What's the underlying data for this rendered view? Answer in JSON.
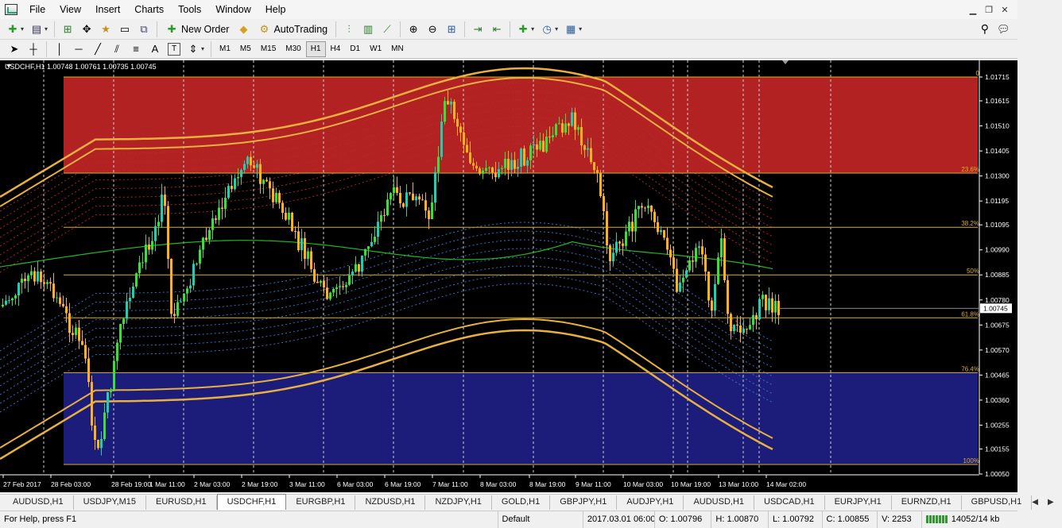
{
  "menu": [
    "File",
    "View",
    "Insert",
    "Charts",
    "Tools",
    "Window",
    "Help"
  ],
  "toolbar": {
    "new_order": "New Order",
    "autotrading": "AutoTrading"
  },
  "drawing_tools": {
    "text_tool": "A",
    "label_tool": "T"
  },
  "timeframes": [
    "M1",
    "M5",
    "M15",
    "M30",
    "H1",
    "H4",
    "D1",
    "W1",
    "MN"
  ],
  "active_timeframe": "H1",
  "chart": {
    "info": "USDCHF,H1  1.00748 1.00761 1.00735 1.00745",
    "current_price": "1.00745",
    "price_labels": [
      "1.01715",
      "1.01615",
      "1.01510",
      "1.01405",
      "1.01300",
      "1.01195",
      "1.01095",
      "1.00990",
      "1.00885",
      "1.00780",
      "1.00675",
      "1.00570",
      "1.00465",
      "1.00360",
      "1.00255",
      "1.00155",
      "1.00050"
    ],
    "time_labels": [
      "27 Feb 2017",
      "28 Feb 03:00",
      "28 Feb 19:00",
      "1 Mar 11:00",
      "2 Mar 03:00",
      "2 Mar 19:00",
      "3 Mar 11:00",
      "6 Mar 03:00",
      "6 Mar 19:00",
      "7 Mar 11:00",
      "8 Mar 03:00",
      "8 Mar 19:00",
      "9 Mar 11:00",
      "10 Mar 03:00",
      "10 Mar 19:00",
      "13 Mar 10:00",
      "14 Mar 02:00"
    ],
    "fib_levels": [
      {
        "label": "0",
        "price": 1.01715
      },
      {
        "label": "23.6%",
        "price": 1.01312
      },
      {
        "label": "38.2%",
        "price": 1.01085
      },
      {
        "label": "50%",
        "price": 1.00885
      },
      {
        "label": "61.8%",
        "price": 1.00705
      },
      {
        "label": "76.4%",
        "price": 1.00475
      },
      {
        "label": "100%",
        "price": 1.0009
      }
    ],
    "colors": {
      "bull": "#1fd0b0",
      "bear": "#ffb020",
      "bull_alt": "#38e038",
      "fib_line": "#d8b030",
      "zone_red": "#b22222",
      "zone_blue": "#1c1c7a",
      "band_gold": "#e8b040",
      "ma_line": "#22b822"
    }
  },
  "symbol_tabs": [
    "AUDUSD,H1",
    "USDJPY,M15",
    "EURUSD,H1",
    "USDCHF,H1",
    "EURGBP,H1",
    "NZDUSD,H1",
    "NZDJPY,H1",
    "GOLD,H1",
    "GBPJPY,H1",
    "AUDJPY,H1",
    "AUDUSD,H1",
    "USDCAD,H1",
    "EURJPY,H1",
    "EURNZD,H1",
    "GBPUSD,H1"
  ],
  "active_tab": "USDCHF,H1",
  "status": {
    "help": "For Help, press F1",
    "profile": "Default",
    "datetime": "2017.03.01 06:00",
    "open": "O: 1.00796",
    "high": "H: 1.00870",
    "low": "L: 1.00792",
    "close": "C: 1.00855",
    "volume": "V: 2253",
    "traffic": "14052/14 kb"
  }
}
